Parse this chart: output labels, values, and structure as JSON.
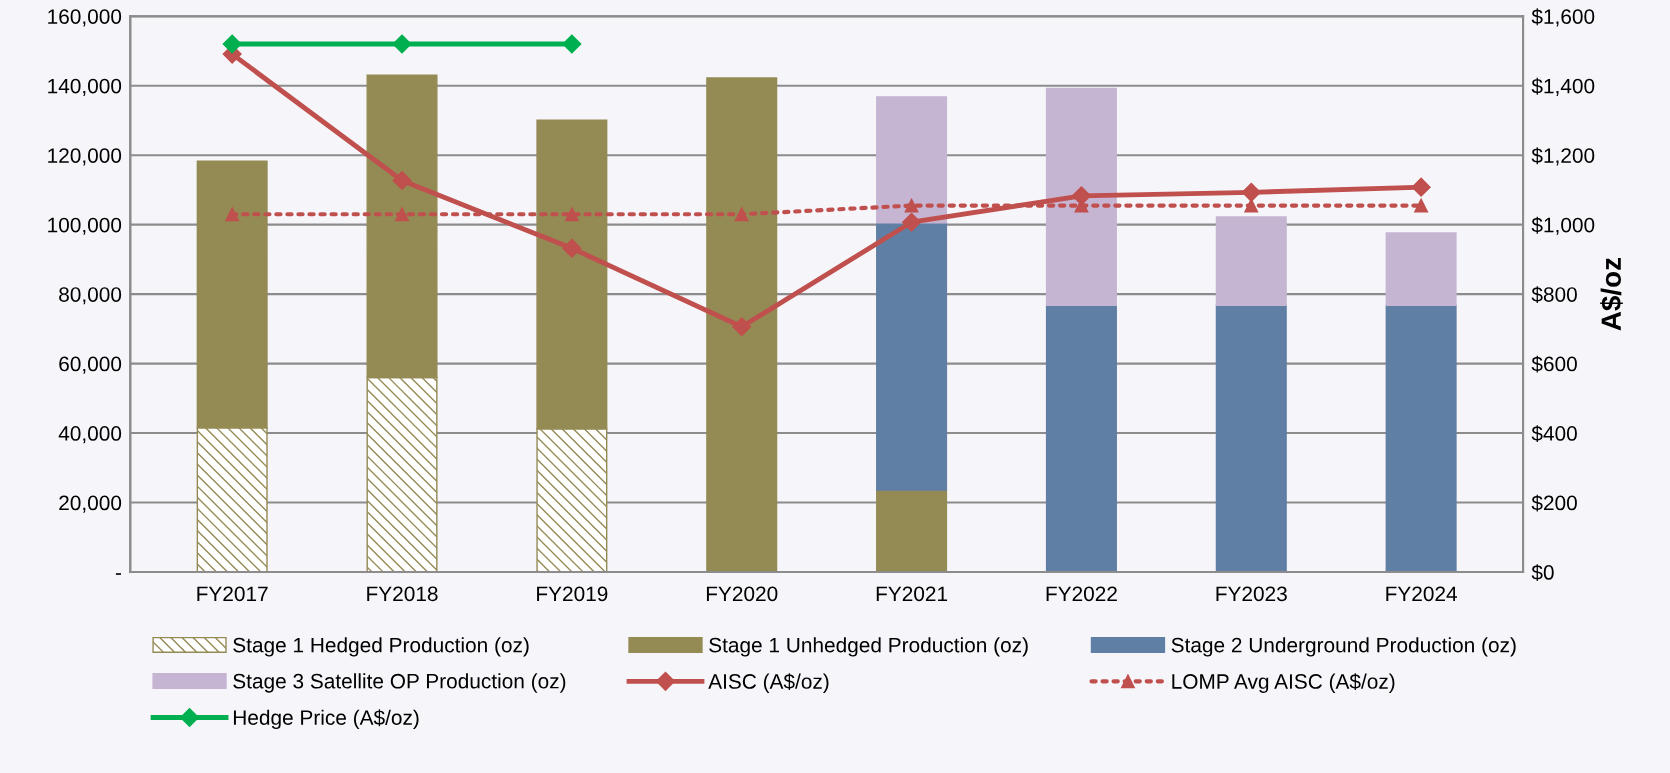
{
  "chart_data": {
    "type": "bar",
    "stacked": true,
    "categories": [
      "FY2017",
      "FY2018",
      "FY2019",
      "FY2020",
      "FY2021",
      "FY2022",
      "FY2023",
      "FY2024"
    ],
    "series": [
      {
        "name": "Stage 1 Hedged Production (oz)",
        "color": "#948a54",
        "values": [
          41500,
          56000,
          41200,
          null,
          null,
          null,
          null,
          null
        ]
      },
      {
        "name": "Stage 1 Unhedged Production (oz)",
        "color": "#948a54",
        "values": [
          76800,
          87000,
          88900,
          142200,
          23600,
          null,
          null,
          null
        ]
      },
      {
        "name": "Stage 2 Underground Production (oz)",
        "color": "#607fa5",
        "values": [
          null,
          null,
          null,
          null,
          76900,
          76800,
          76800,
          76800
        ]
      },
      {
        "name": "Stage 3 Satellite OP Production (oz)",
        "color": "#c5b5d3",
        "values": [
          null,
          null,
          null,
          null,
          36300,
          62400,
          25400,
          20800
        ]
      },
      {
        "name": "AISC (A$/oz)",
        "type": "line",
        "axis": "y2",
        "color": "#c0504d",
        "marker": "diamond",
        "line_style": "solid",
        "values": [
          1491,
          1127,
          932,
          706,
          1007,
          1083,
          1093,
          1108
        ]
      },
      {
        "name": "LOMP Avg AISC (A$/oz)",
        "type": "line",
        "axis": "y2",
        "color": "#c0504d",
        "marker": "triangle",
        "line_style": "dotted",
        "values": [
          1030,
          1030,
          1030,
          1030,
          1055,
          1055,
          1055,
          1055
        ]
      },
      {
        "name": "Hedge Price (A$/oz)",
        "type": "line",
        "axis": "y2",
        "color": "#00b050",
        "marker": "diamond",
        "line_style": "solid",
        "values": [
          1520,
          1520,
          1520,
          null,
          null,
          null,
          null,
          null
        ]
      }
    ],
    "ylim": [
      0,
      160000
    ],
    "yticks": [
      {
        "value": 0,
        "label": "-"
      },
      {
        "value": 20000,
        "label": "20,000"
      },
      {
        "value": 40000,
        "label": "40,000"
      },
      {
        "value": 60000,
        "label": "60,000"
      },
      {
        "value": 80000,
        "label": "80,000"
      },
      {
        "value": 100000,
        "label": "100,000"
      },
      {
        "value": 120000,
        "label": "120,000"
      },
      {
        "value": 140000,
        "label": "140,000"
      },
      {
        "value": 160000,
        "label": "160,000"
      }
    ],
    "y2lim": [
      0,
      1600
    ],
    "y2ticks": [
      {
        "value": 0,
        "label": "$0"
      },
      {
        "value": 200,
        "label": "$200"
      },
      {
        "value": 400,
        "label": "$400"
      },
      {
        "value": 600,
        "label": "$600"
      },
      {
        "value": 800,
        "label": "$800"
      },
      {
        "value": 1000,
        "label": "$1,000"
      },
      {
        "value": 1200,
        "label": "$1,200"
      },
      {
        "value": 1400,
        "label": "$1,400"
      },
      {
        "value": 1600,
        "label": "$1,600"
      }
    ],
    "y2label": "A$/oz",
    "grid": "y",
    "legend": "bottom"
  }
}
